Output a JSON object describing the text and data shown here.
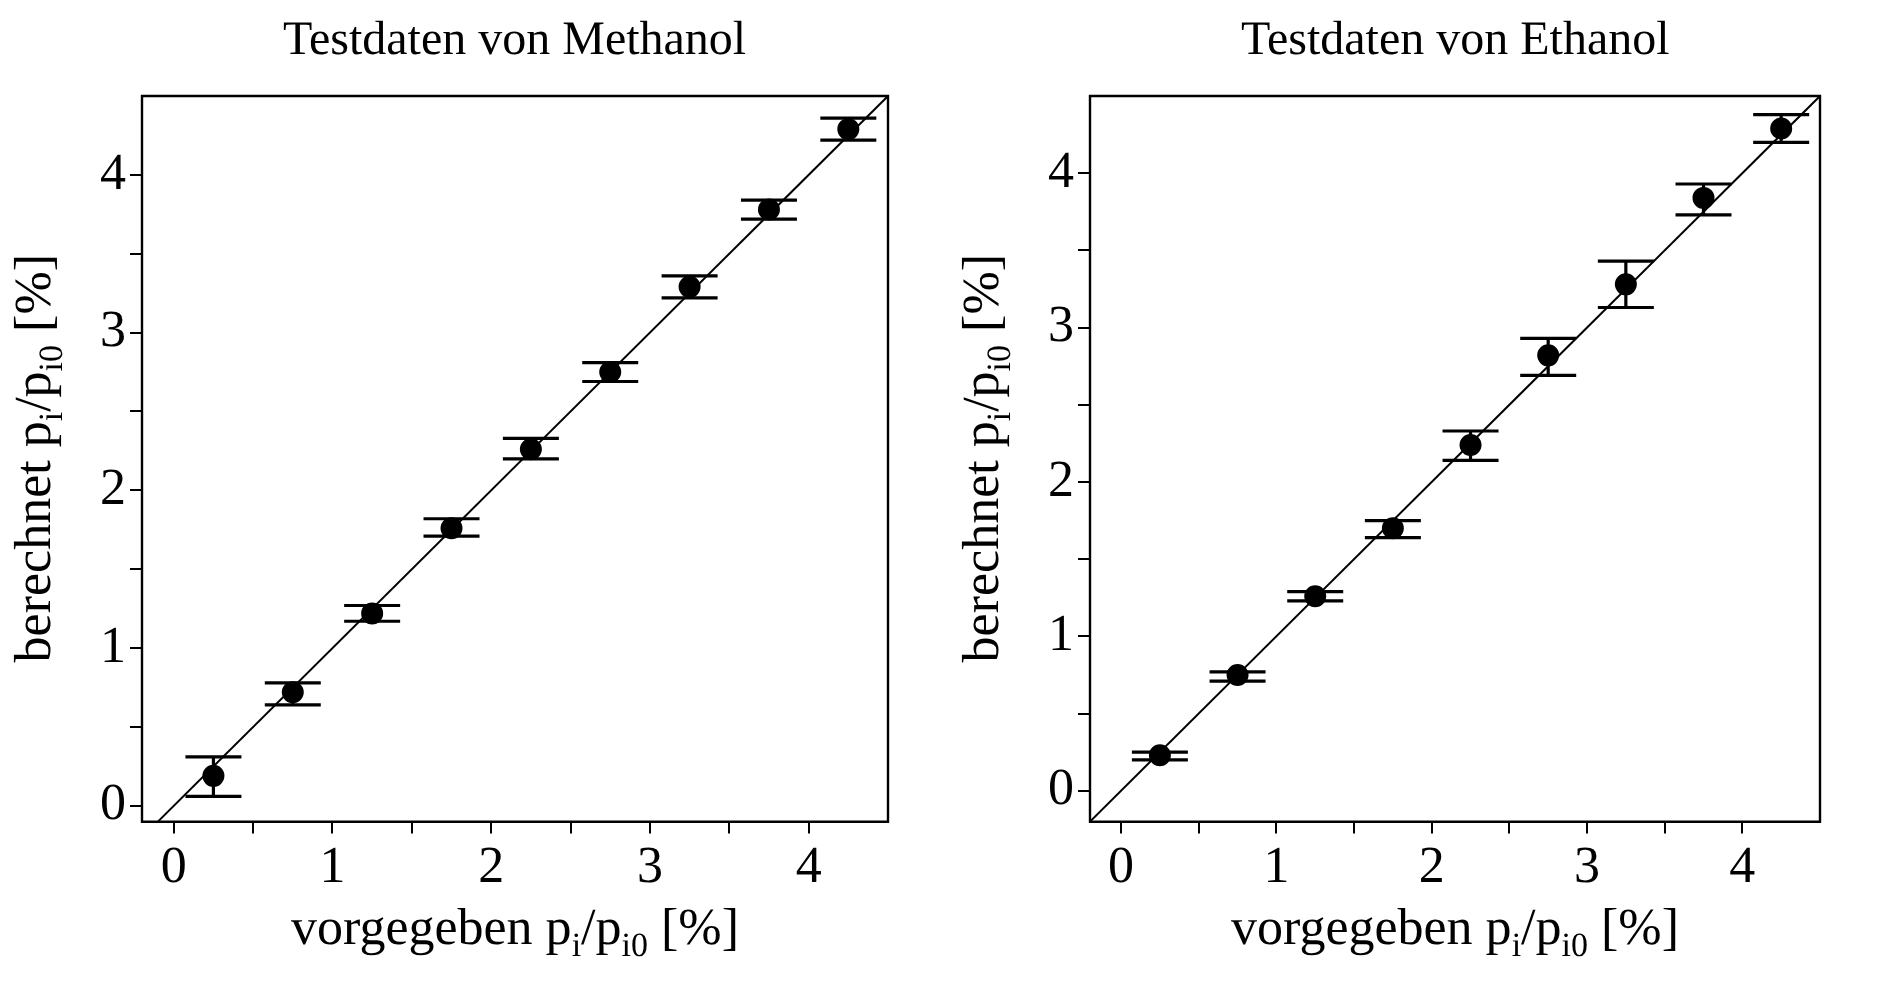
{
  "chart_data": [
    {
      "type": "scatter",
      "title": "Testdaten von Methanol",
      "xlabel": "vorgegeben p$_{i}$/p$_{i0}$ [%]",
      "ylabel": "berechnet p$_{i}$/p$_{i0}$ [%]",
      "x": [
        0.25,
        0.75,
        1.25,
        1.75,
        2.25,
        2.75,
        3.25,
        3.75,
        4.25
      ],
      "xlim": [
        -0.2,
        4.5
      ],
      "ylim": [
        -0.1,
        4.5
      ],
      "xticks": [
        0,
        {
          "value": 0.5,
          "label": null
        },
        1,
        {
          "value": 1.5,
          "label": null
        },
        2,
        {
          "value": 2.5,
          "label": null
        },
        3,
        {
          "value": 3.5,
          "label": null
        },
        4
      ],
      "yticks": [
        0,
        {
          "value": 0.5,
          "label": null
        },
        1,
        {
          "value": 1.5,
          "label": null
        },
        2,
        {
          "value": 2.5,
          "label": null
        },
        3,
        {
          "value": 3.5,
          "label": null
        },
        4
      ],
      "grid": false,
      "legend": false,
      "series": [
        {
          "color": "#000000",
          "marker": "circle",
          "values": [
            0.19,
            0.72,
            1.22,
            1.76,
            2.26,
            2.75,
            3.29,
            3.78,
            4.29
          ],
          "errors": [
            [
              0.06,
              0.31
            ],
            [
              0.64,
              0.78
            ],
            [
              1.17,
              1.27
            ],
            [
              1.71,
              1.82
            ],
            [
              2.2,
              2.33
            ],
            [
              2.69,
              2.81
            ],
            [
              3.22,
              3.36
            ],
            [
              3.72,
              3.84
            ],
            [
              4.22,
              4.36
            ]
          ]
        },
        {
          "type": "line",
          "color": "#000000",
          "x": [
            -0.1,
            4.5
          ],
          "values": [
            -0.1,
            4.5
          ]
        }
      ]
    },
    {
      "type": "scatter",
      "title": "Testdaten von Ethanol",
      "xlabel": "vorgegeben p$_{i}$/p$_{i0}$ [%]",
      "ylabel": "berechnet p$_{i}$/p$_{i0}$ [%]",
      "x": [
        0.25,
        0.75,
        1.25,
        1.75,
        2.25,
        2.75,
        3.25,
        3.75,
        4.25
      ],
      "xlim": [
        -0.2,
        4.5
      ],
      "ylim": [
        -0.2,
        4.5
      ],
      "xticks": [
        0,
        {
          "value": 0.5,
          "label": null
        },
        1,
        {
          "value": 1.5,
          "label": null
        },
        2,
        {
          "value": 2.5,
          "label": null
        },
        3,
        {
          "value": 3.5,
          "label": null
        },
        4
      ],
      "yticks": [
        0,
        {
          "value": 0.5,
          "label": null
        },
        1,
        {
          "value": 1.5,
          "label": null
        },
        2,
        {
          "value": 2.5,
          "label": null
        },
        3,
        {
          "value": 3.5,
          "label": null
        },
        4
      ],
      "grid": false,
      "legend": false,
      "series": [
        {
          "color": "#000000",
          "marker": "circle",
          "values": [
            0.23,
            0.75,
            1.26,
            1.7,
            2.24,
            2.82,
            3.28,
            3.84,
            4.29
          ],
          "errors": [
            [
              0.2,
              0.25
            ],
            [
              0.71,
              0.77
            ],
            [
              1.23,
              1.29
            ],
            [
              1.64,
              1.75
            ],
            [
              2.14,
              2.33
            ],
            [
              2.69,
              2.93
            ],
            [
              3.13,
              3.43
            ],
            [
              3.73,
              3.93
            ],
            [
              4.2,
              4.38
            ]
          ]
        },
        {
          "type": "line",
          "color": "#000000",
          "x": [
            -0.2,
            4.5
          ],
          "values": [
            -0.2,
            4.5
          ]
        }
      ]
    }
  ]
}
